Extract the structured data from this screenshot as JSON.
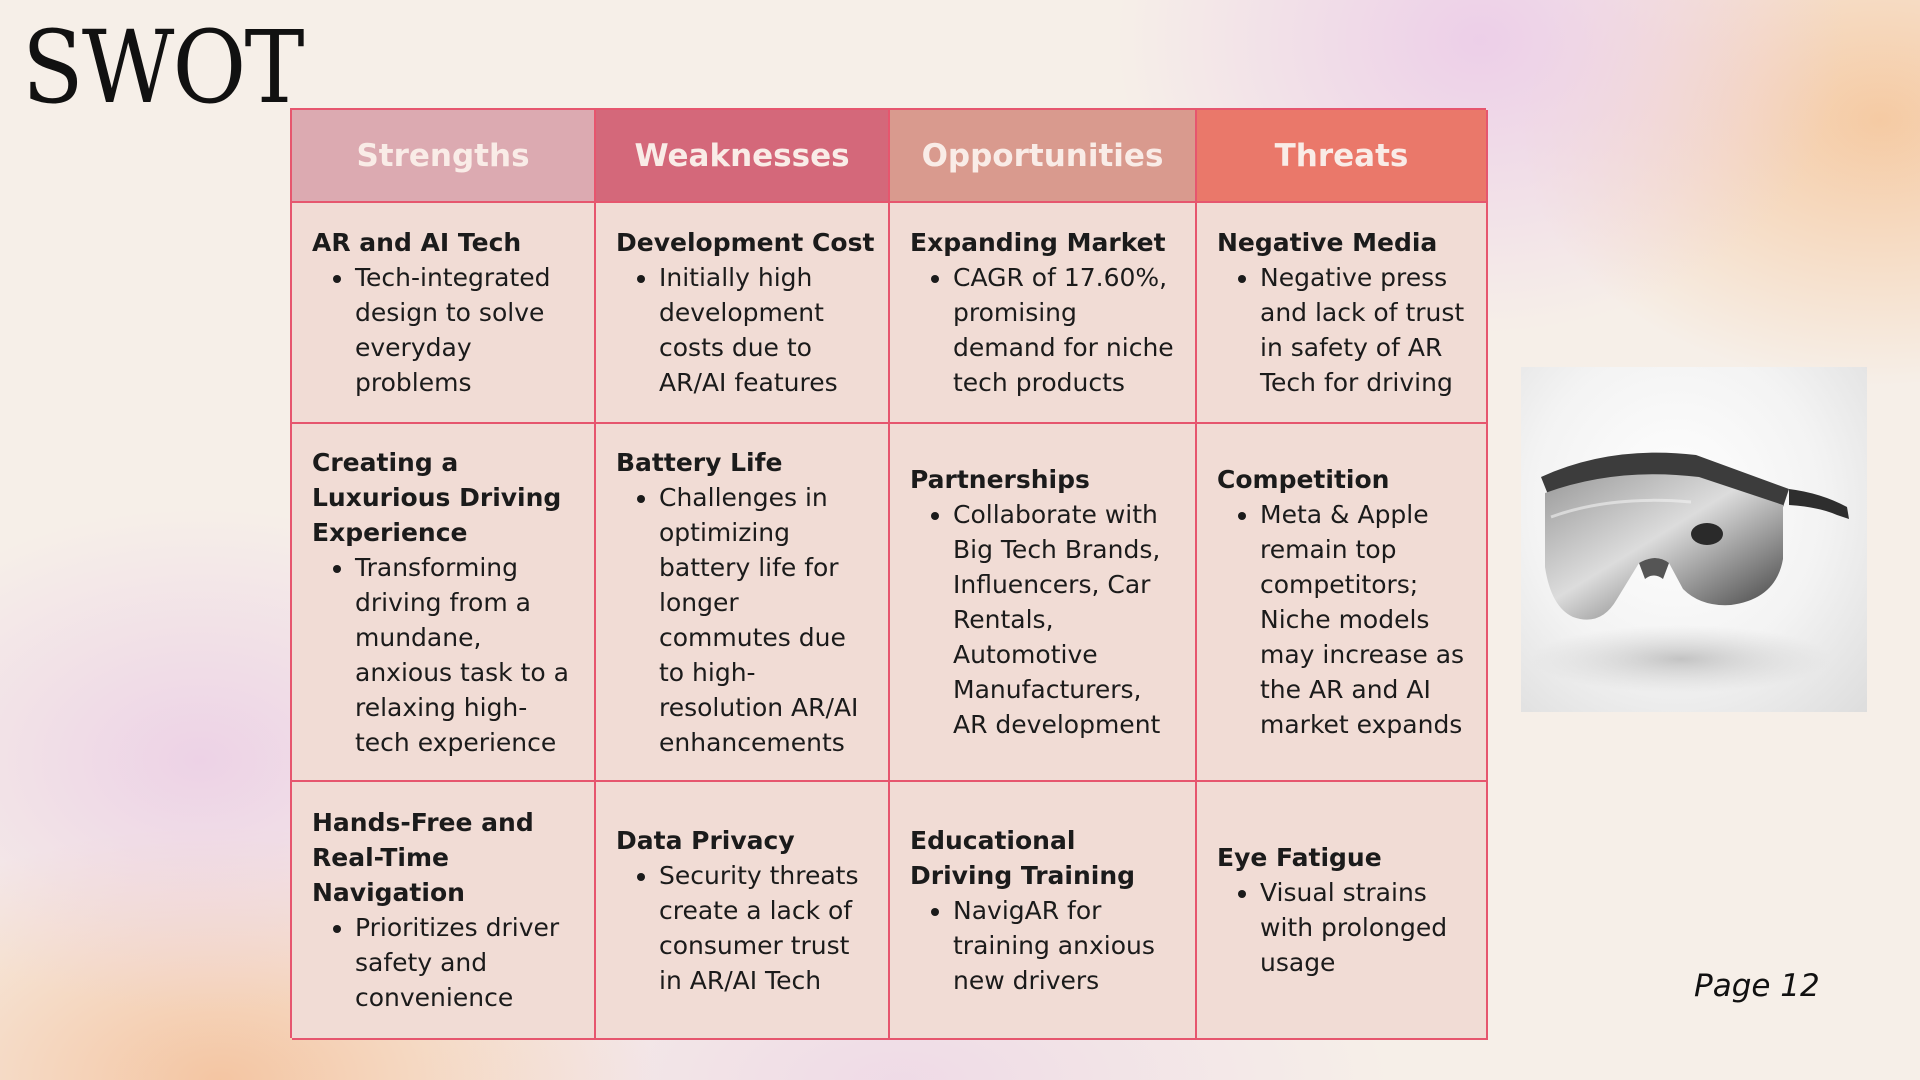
{
  "title": "SWOT",
  "page_label": "Page 12",
  "columns": [
    {
      "header": "Strengths"
    },
    {
      "header": "Weaknesses"
    },
    {
      "header": "Opportunities"
    },
    {
      "header": "Threats"
    }
  ],
  "rows": [
    [
      {
        "title": "AR and AI Tech",
        "bullet": "Tech-integrated design to solve everyday problems"
      },
      {
        "title": "Development Cost",
        "bullet": "Initially high development costs due to AR/AI features"
      },
      {
        "title": "Expanding Market",
        "bullet": "CAGR of 17.60%, promising demand for niche tech products"
      },
      {
        "title": "Negative Media",
        "bullet": "Negative press and lack of trust in safety of AR Tech for driving"
      }
    ],
    [
      {
        "title": "Creating a Luxurious Driving Experience",
        "bullet": "Transforming driving from a mundane, anxious task to a relaxing high-tech experience"
      },
      {
        "title": "Battery Life",
        "bullet": "Challenges in optimizing battery life for longer commutes due to high-resolution AR/AI enhancements"
      },
      {
        "title": "Partnerships",
        "bullet": "Collaborate with Big Tech Brands, Influencers, Car Rentals, Automotive Manufacturers, AR development"
      },
      {
        "title": "Competition",
        "bullet": "Meta & Apple remain top competitors; Niche models may increase as the AR and AI market expands"
      }
    ],
    [
      {
        "title": "Hands-Free and Real-Time Navigation",
        "bullet": "Prioritizes driver safety and convenience"
      },
      {
        "title": "Data Privacy",
        "bullet": "Security threats create a lack of consumer trust in AR/AI Tech"
      },
      {
        "title": "Educational Driving Training",
        "bullet": "NavigAR for training anxious new drivers"
      },
      {
        "title": "Eye Fatigue",
        "bullet": "Visual strains with prolonged usage"
      }
    ]
  ],
  "image": {
    "icon": "ar-glasses-icon"
  }
}
